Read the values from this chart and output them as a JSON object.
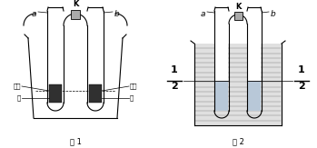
{
  "fig_width": 3.49,
  "fig_height": 1.63,
  "dpi": 100,
  "bg_color": "#ffffff",
  "line_color": "#000000",
  "caption1": "图 1",
  "caption2": "图 2",
  "label_a": "a",
  "label_b": "b",
  "label_K": "K",
  "label_bailan": "白磷",
  "label_tong1": "铜",
  "label_hongling": "红磷",
  "label_tong2": "铜",
  "dark_fill": "#303030",
  "gray_fill": "#aaaaaa",
  "grid_fill": "#cccccc",
  "water_color": "#b8c8d8"
}
